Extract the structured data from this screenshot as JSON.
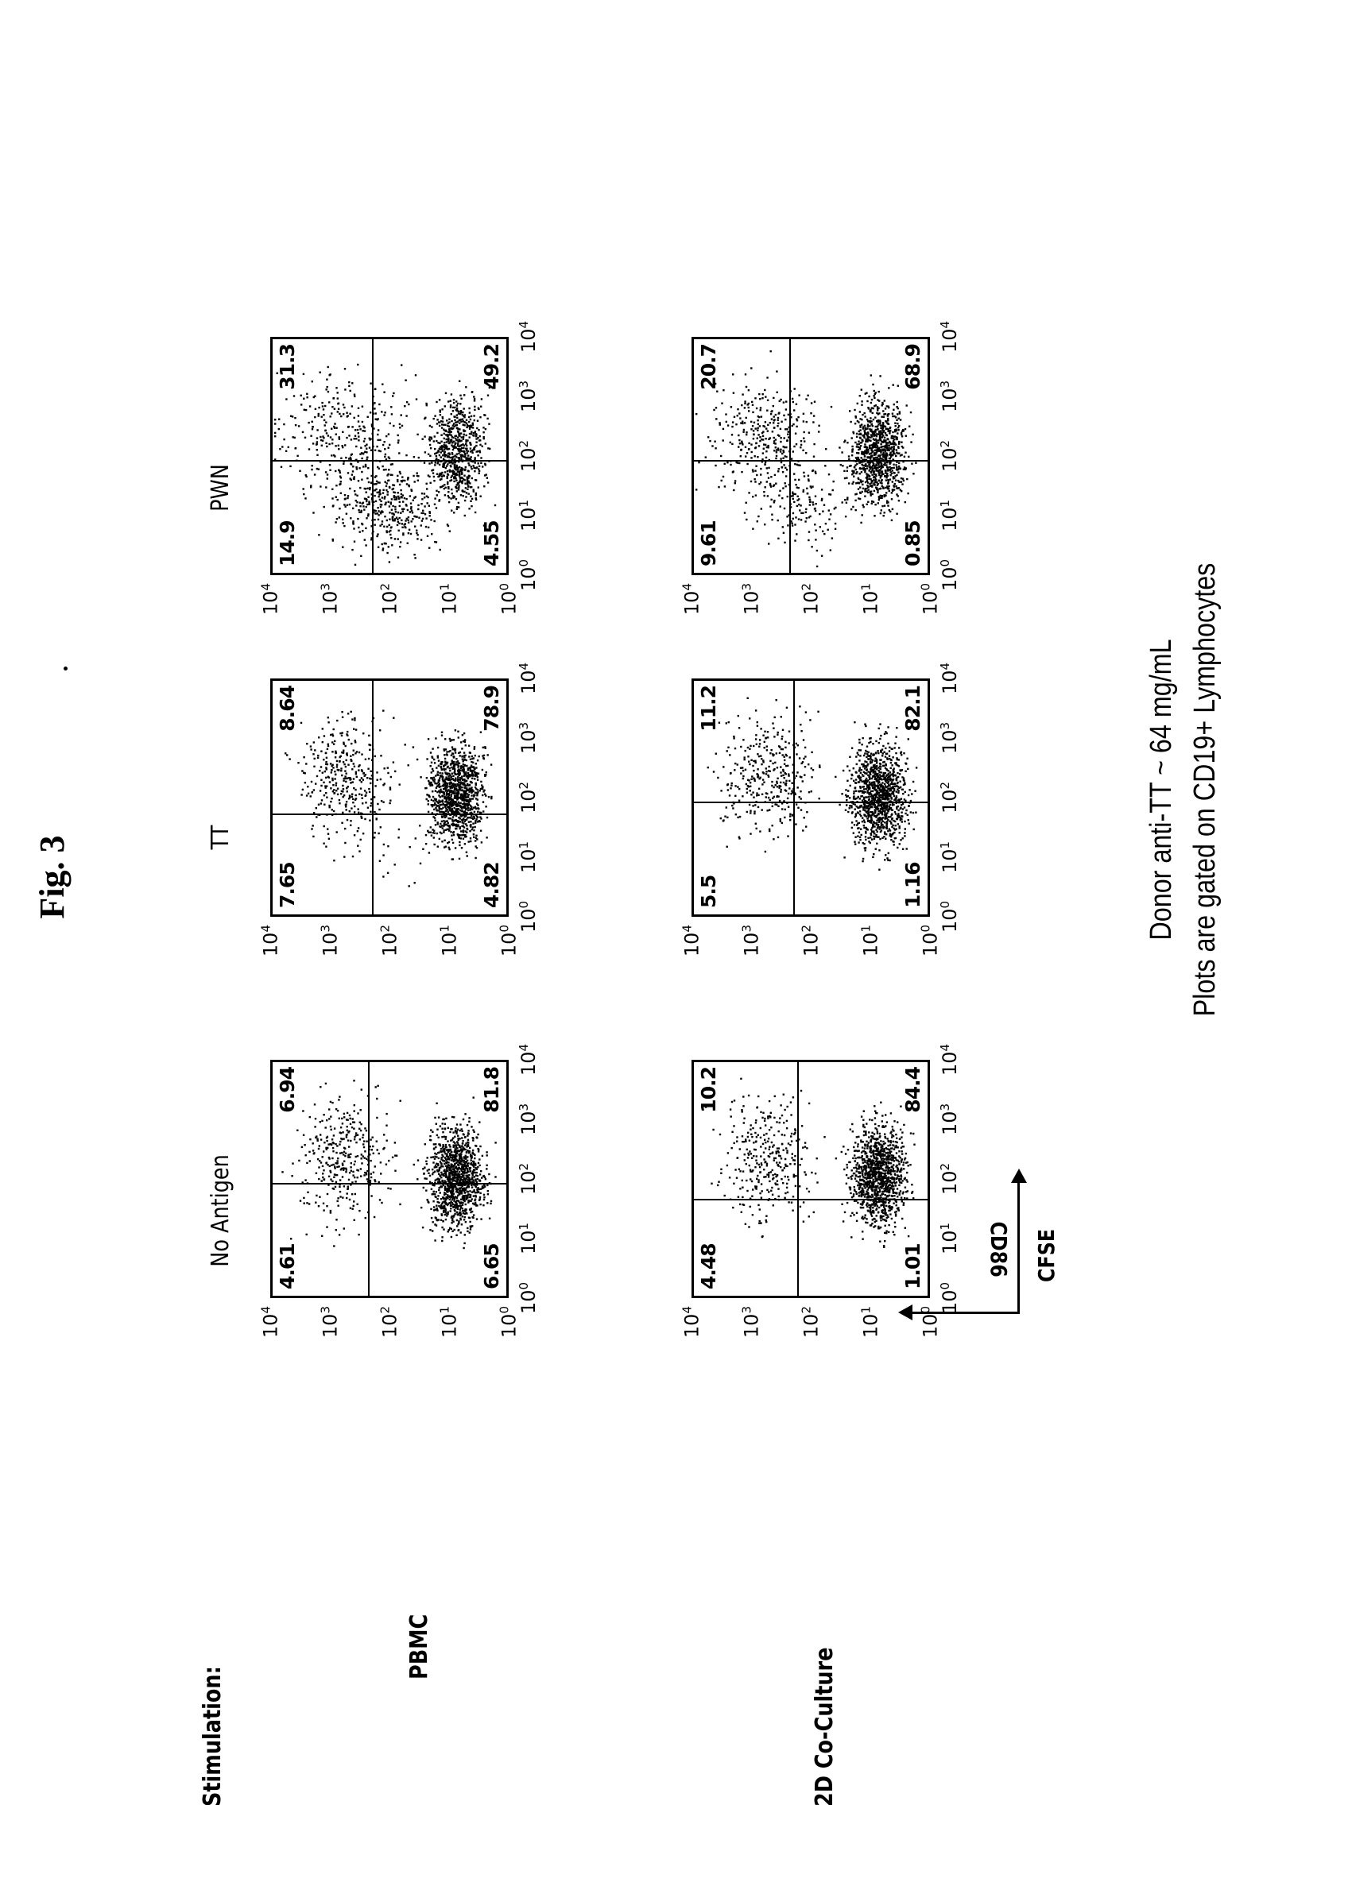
{
  "figure": {
    "title": "Fig. 3",
    "stimulation_label": "Stimulation:",
    "row_labels": [
      "PBMC",
      "2D Co-Culture"
    ],
    "column_labels": [
      "No Antigen",
      "TT",
      "PWN"
    ],
    "y_axis_label": "CD86",
    "x_axis_label": "CFSE",
    "caption_line1": "Donor anti-TT ~ 64 mg/mL",
    "caption_line2": "Plots are gated on CD19+ Lymphocytes",
    "tick_labels": [
      "10",
      "10",
      "10",
      "10",
      "10"
    ],
    "tick_exponents": [
      "0",
      "1",
      "2",
      "3",
      "4"
    ]
  },
  "chart_data": [
    {
      "type": "scatter",
      "title": "PBMC - No Antigen",
      "row": "PBMC",
      "column": "No Antigen",
      "xlabel": "CFSE",
      "ylabel": "CD86",
      "xscale": "log",
      "yscale": "log",
      "xlim": [
        1,
        10000
      ],
      "ylim": [
        1,
        10000
      ],
      "quadrants": {
        "upper_left": 4.61,
        "upper_right": 6.94,
        "lower_left": 6.65,
        "lower_right": 81.8
      }
    },
    {
      "type": "scatter",
      "title": "PBMC - TT",
      "row": "PBMC",
      "column": "TT",
      "xlabel": "CFSE",
      "ylabel": "CD86",
      "xscale": "log",
      "yscale": "log",
      "xlim": [
        1,
        10000
      ],
      "ylim": [
        1,
        10000
      ],
      "quadrants": {
        "upper_left": 7.65,
        "upper_right": 8.64,
        "lower_left": 4.82,
        "lower_right": 78.9
      }
    },
    {
      "type": "scatter",
      "title": "PBMC - PWN",
      "row": "PBMC",
      "column": "PWN",
      "xlabel": "CFSE",
      "ylabel": "CD86",
      "xscale": "log",
      "yscale": "log",
      "xlim": [
        1,
        10000
      ],
      "ylim": [
        1,
        10000
      ],
      "quadrants": {
        "upper_left": 14.9,
        "upper_right": 31.3,
        "lower_left": 4.55,
        "lower_right": 49.2
      }
    },
    {
      "type": "scatter",
      "title": "2D Co-Culture - No Antigen",
      "row": "2D Co-Culture",
      "column": "No Antigen",
      "xlabel": "CFSE",
      "ylabel": "CD86",
      "xscale": "log",
      "yscale": "log",
      "xlim": [
        1,
        10000
      ],
      "ylim": [
        1,
        10000
      ],
      "quadrants": {
        "upper_left": 4.48,
        "upper_right": 10.2,
        "lower_left": 1.01,
        "lower_right": 84.4
      }
    },
    {
      "type": "scatter",
      "title": "2D Co-Culture - TT",
      "row": "2D Co-Culture",
      "column": "TT",
      "xlabel": "CFSE",
      "ylabel": "CD86",
      "xscale": "log",
      "yscale": "log",
      "xlim": [
        1,
        10000
      ],
      "ylim": [
        1,
        10000
      ],
      "quadrants": {
        "upper_left": 5.5,
        "upper_right": 11.2,
        "lower_left": 1.16,
        "lower_right": 82.1
      }
    },
    {
      "type": "scatter",
      "title": "2D Co-Culture - PWN",
      "row": "2D Co-Culture",
      "column": "PWN",
      "xlabel": "CFSE",
      "ylabel": "CD86",
      "xscale": "log",
      "yscale": "log",
      "xlim": [
        1,
        10000
      ],
      "ylim": [
        1,
        10000
      ],
      "quadrants": {
        "upper_left": 9.61,
        "upper_right": 20.7,
        "lower_left": 0.85,
        "lower_right": 68.9
      }
    }
  ],
  "panels": [
    {
      "ul": "4.61",
      "ur": "6.94",
      "ll": "6.65",
      "lr": "81.8"
    },
    {
      "ul": "7.65",
      "ur": "8.64",
      "ll": "4.82",
      "lr": "78.9"
    },
    {
      "ul": "14.9",
      "ur": "31.3",
      "ll": "4.55",
      "lr": "49.2"
    },
    {
      "ul": "4.48",
      "ur": "10.2",
      "ll": "1.01",
      "lr": "84.4"
    },
    {
      "ul": "5.5",
      "ur": "11.2",
      "ll": "1.16",
      "lr": "82.1"
    },
    {
      "ul": "9.61",
      "ur": "20.7",
      "ll": "0.85",
      "lr": "68.9"
    }
  ]
}
